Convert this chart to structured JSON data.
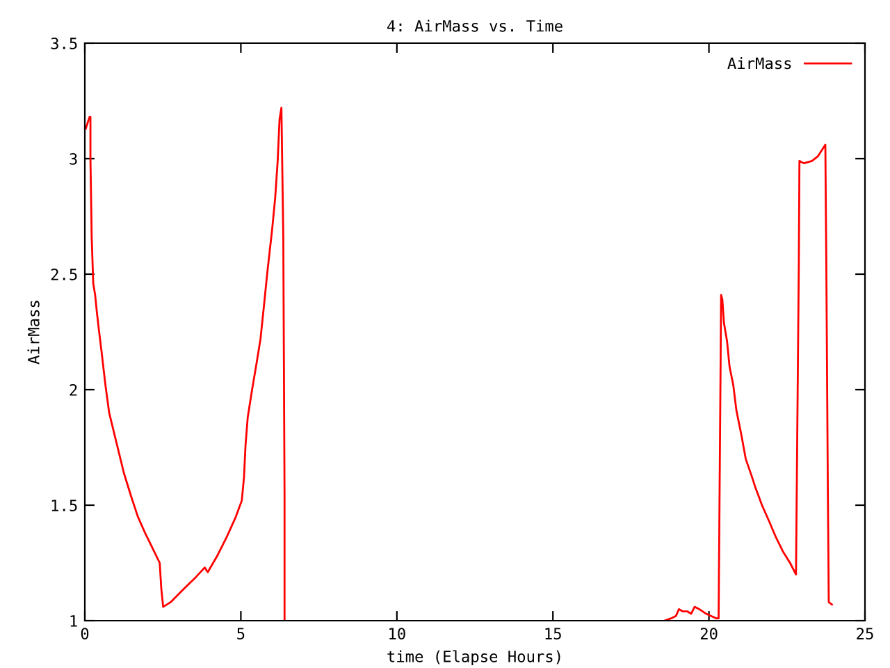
{
  "chart_data": {
    "type": "line",
    "title": "4: AirMass vs. Time",
    "xlabel": "time (Elapse Hours)",
    "ylabel": "AirMass",
    "xlim": [
      0,
      25
    ],
    "xticks": [
      0,
      5,
      10,
      15,
      20,
      25
    ],
    "ylim": [
      1,
      3.5
    ],
    "yticks": [
      1,
      1.5,
      2,
      2.5,
      3,
      3.5
    ],
    "grid": false,
    "legend": "top right",
    "marker": "none",
    "line_style": "solid",
    "series": [
      {
        "name": "AirMass",
        "color": "#ff0000",
        "x": [
          0.03,
          0.15,
          0.18,
          0.18,
          0.22,
          0.27,
          0.33,
          0.39,
          0.45,
          0.54,
          0.66,
          0.78,
          0.96,
          1.07,
          1.25,
          1.48,
          1.7,
          1.93,
          2.22,
          2.4,
          2.45,
          2.51,
          2.75,
          3.19,
          3.57,
          3.84,
          3.94,
          4.24,
          4.54,
          4.84,
          5.03,
          5.1,
          5.15,
          5.22,
          5.36,
          5.51,
          5.63,
          5.73,
          5.85,
          6.0,
          6.1,
          6.18,
          6.24,
          6.3,
          6.36,
          6.4,
          6.4,
          12,
          18.57,
          18.79,
          18.94,
          19.04,
          19.16,
          19.31,
          19.43,
          19.54,
          19.69,
          19.91,
          20.24,
          20.31,
          20.33,
          20.37,
          20.39,
          20.43,
          20.48,
          20.58,
          20.66,
          20.78,
          20.88,
          21.03,
          21.18,
          21.36,
          21.48,
          21.7,
          21.93,
          22.15,
          22.37,
          22.6,
          22.79,
          22.82,
          22.88,
          22.9,
          23.04,
          23.3,
          23.49,
          23.73,
          23.76,
          23.81,
          23.84,
          23.94
        ],
        "values": [
          3.13,
          3.18,
          3.18,
          3.0,
          2.66,
          2.46,
          2.41,
          2.33,
          2.26,
          2.16,
          2.02,
          1.9,
          1.8,
          1.74,
          1.64,
          1.54,
          1.45,
          1.38,
          1.3,
          1.25,
          1.14,
          1.06,
          1.08,
          1.14,
          1.19,
          1.23,
          1.21,
          1.28,
          1.36,
          1.45,
          1.52,
          1.62,
          1.76,
          1.88,
          2.0,
          2.12,
          2.22,
          2.35,
          2.51,
          2.69,
          2.83,
          2.99,
          3.17,
          3.22,
          2.66,
          1.55,
          1.0,
          null,
          1.0,
          1.01,
          1.02,
          1.05,
          1.04,
          1.04,
          1.03,
          1.06,
          1.05,
          1.03,
          1.01,
          1.01,
          1.36,
          2.05,
          2.41,
          2.39,
          2.29,
          2.21,
          2.1,
          2.02,
          1.91,
          1.81,
          1.7,
          1.63,
          1.58,
          1.5,
          1.43,
          1.36,
          1.3,
          1.25,
          1.2,
          1.65,
          2.54,
          2.99,
          2.98,
          2.99,
          3.01,
          3.06,
          2.57,
          1.58,
          1.08,
          1.07
        ]
      }
    ]
  }
}
